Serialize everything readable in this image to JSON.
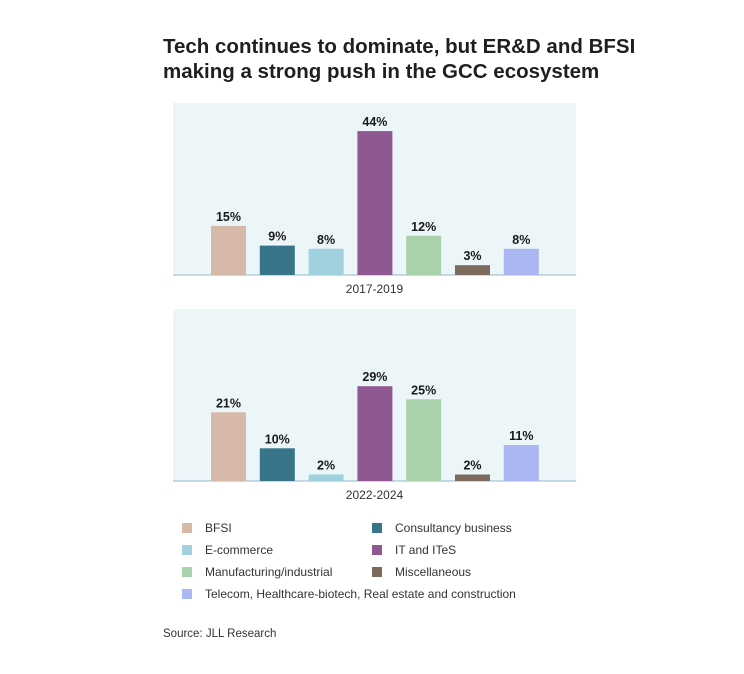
{
  "title_lines": [
    "Tech continues to dominate, but ER&D and BFSI",
    "making a strong push in the GCC ecosystem"
  ],
  "source": "Source: JLL Research",
  "colors": {
    "panel_bg": "#ecf6f9",
    "axis": "#8fb8c8",
    "BFSI": "#d6b9a8",
    "Consultancy business": "#38758a",
    "E-commerce": "#9fd1df",
    "IT and ITeS": "#8f5892",
    "Manufacturing/industrial": "#a9d1ab",
    "Miscellaneous": "#7c6a5e",
    "Telecom, Healthcare-biotech, Real estate and construction": "#abb7f3"
  },
  "legend": [
    {
      "label": "BFSI"
    },
    {
      "label": "Consultancy business"
    },
    {
      "label": "E-commerce"
    },
    {
      "label": "IT and ITeS"
    },
    {
      "label": "Manufacturing/industrial"
    },
    {
      "label": "Miscellaneous"
    },
    {
      "label": "Telecom, Healthcare-biotech, Real estate and construction"
    }
  ],
  "chart_data": {
    "type": "bar",
    "value_unit": "%",
    "grid": false,
    "legend_position": "bottom",
    "ylim": [
      0,
      50
    ],
    "categories": [
      "BFSI",
      "Consultancy business",
      "E-commerce",
      "IT and ITeS",
      "Manufacturing/industrial",
      "Miscellaneous",
      "Telecom, Healthcare-biotech, Real estate and construction"
    ],
    "panels": [
      {
        "period": "2017-2019",
        "values": [
          15,
          9,
          8,
          44,
          12,
          3,
          8
        ],
        "labels": [
          "15%",
          "9%",
          "8%",
          "44%",
          "12%",
          "3%",
          "8%"
        ]
      },
      {
        "period": "2022-2024",
        "values": [
          21,
          10,
          2,
          29,
          25,
          2,
          11
        ],
        "labels": [
          "21%",
          "10%",
          "2%",
          "29%",
          "25%",
          "2%",
          "11%"
        ]
      }
    ]
  }
}
